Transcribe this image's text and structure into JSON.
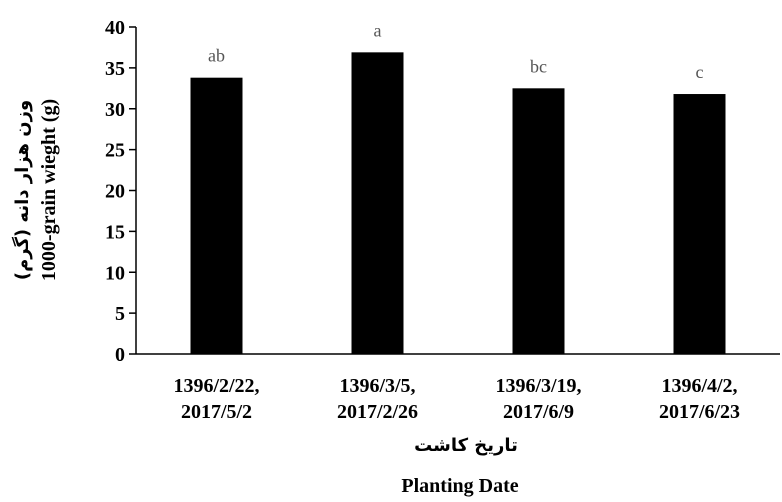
{
  "chart_data": {
    "type": "bar",
    "categories": [
      [
        "1396/2/22,",
        "2017/5/2"
      ],
      [
        "1396/3/5,",
        "2017/2/26"
      ],
      [
        "1396/3/19,",
        "2017/6/9"
      ],
      [
        "1396/4/2,",
        "2017/6/23"
      ]
    ],
    "values": [
      33.8,
      36.9,
      32.5,
      31.8
    ],
    "significance_letters": [
      "ab",
      "a",
      "bc",
      "c"
    ],
    "ylabel_fa": "وزن هزار دانه (گرم)",
    "ylabel": "1000-grain wieght (g)",
    "xlabel_fa": "تاریخ کاشت",
    "xlabel": "Planting Date",
    "ylim": [
      0,
      40
    ],
    "yticks": [
      0,
      5,
      10,
      15,
      20,
      25,
      30,
      35,
      40
    ],
    "bar_color": "#000000",
    "grid": false,
    "legend": "none"
  }
}
